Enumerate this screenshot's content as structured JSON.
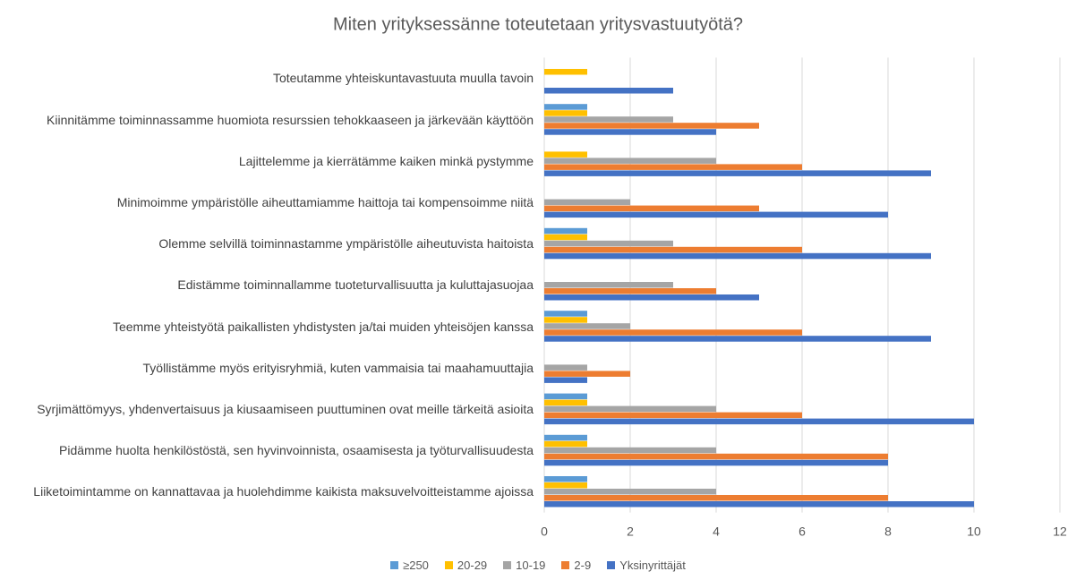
{
  "chart_data": {
    "type": "bar",
    "orientation": "horizontal",
    "title": "Miten yrityksessänne toteutetaan yritysvastuutyötä?",
    "categories": [
      "Toteutamme yhteiskuntavastuuta muulla tavoin",
      "Kiinnitämme toiminnassamme huomiota resurssien tehokkaaseen ja järkevään käyttöön",
      "Lajittelemme ja kierrätämme kaiken minkä pystymme",
      "Minimoimme ympäristölle aiheuttamiamme haittoja tai kompensoimme niitä",
      "Olemme selvillä toiminnastamme ympäristölle aiheutuvista haitoista",
      "Edistämme toiminnallamme tuoteturvallisuutta ja kuluttajasuojaa",
      "Teemme yhteistyötä paikallisten yhdistysten ja/tai muiden yhteisöjen kanssa",
      "Työllistämme myös erityisryhmiä, kuten vammaisia tai maahamuuttajia",
      "Syrjimättömyys, yhdenvertaisuus ja kiusaamiseen puuttuminen ovat meille tärkeitä asioita",
      "Pidämme huolta henkilöstöstä, sen hyvinvoinnista, osaamisesta ja työturvallisuudesta",
      "Liiketoimintamme on kannattavaa ja huolehdimme kaikista maksuvelvoitteistamme ajoissa"
    ],
    "series": [
      {
        "name": "≥250",
        "color": "#5b9bd5",
        "values": [
          0,
          1,
          0,
          0,
          1,
          0,
          1,
          0,
          1,
          1,
          1
        ]
      },
      {
        "name": "20-29",
        "color": "#ffc000",
        "values": [
          1,
          1,
          1,
          0,
          1,
          0,
          1,
          0,
          1,
          1,
          1
        ]
      },
      {
        "name": "10-19",
        "color": "#a5a5a5",
        "values": [
          0,
          3,
          4,
          2,
          3,
          3,
          2,
          1,
          4,
          4,
          4
        ]
      },
      {
        "name": "2-9",
        "color": "#ed7d31",
        "values": [
          0,
          5,
          6,
          5,
          6,
          4,
          6,
          2,
          6,
          8,
          8
        ]
      },
      {
        "name": "Yksinyrittäjät",
        "color": "#4472c4",
        "values": [
          3,
          4,
          9,
          8,
          9,
          5,
          9,
          1,
          10,
          8,
          10
        ]
      }
    ],
    "xlim": [
      0,
      12
    ],
    "xticks": [
      0,
      2,
      4,
      6,
      8,
      10,
      12
    ],
    "grid": true,
    "legend": "bottom"
  }
}
